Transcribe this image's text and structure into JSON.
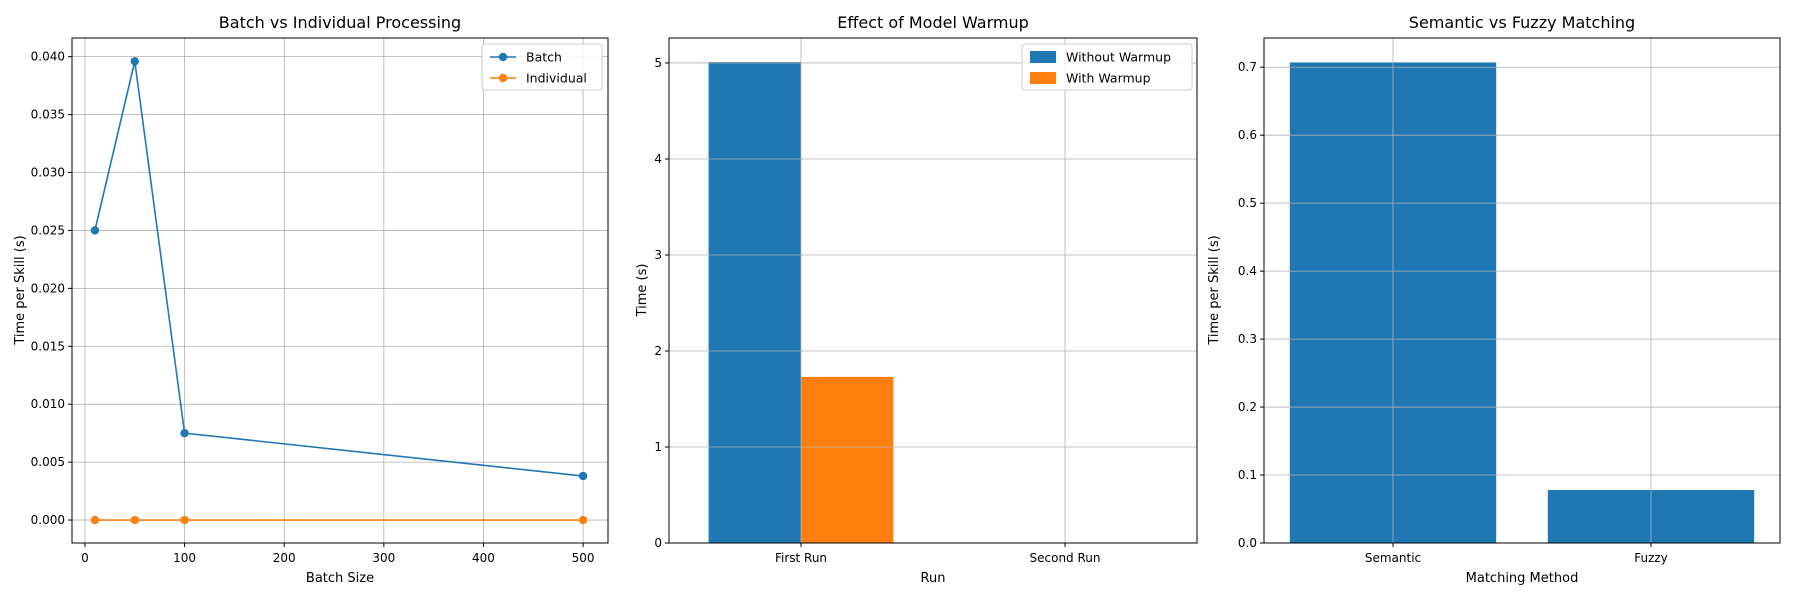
{
  "colors": {
    "blue": "#1f77b4",
    "orange": "#ff7f0e",
    "grid": "#b0b0b0",
    "axis": "#000000"
  },
  "chart_data": [
    {
      "type": "line",
      "title": "Batch vs Individual Processing",
      "xlabel": "Batch Size",
      "ylabel": "Time per Skill (s)",
      "xlim": [
        -13,
        525
      ],
      "ylim": [
        -0.0019815,
        0.04161
      ],
      "xticks": [
        0,
        100,
        200,
        300,
        400,
        500
      ],
      "xtick_labels": [
        "0",
        "100",
        "200",
        "300",
        "400",
        "500"
      ],
      "yticks": [
        0,
        0.005,
        0.01,
        0.015,
        0.02,
        0.025,
        0.03,
        0.035,
        0.04
      ],
      "ytick_labels": [
        "0.000",
        "0.005",
        "0.010",
        "0.015",
        "0.020",
        "0.025",
        "0.030",
        "0.035",
        "0.040"
      ],
      "grid": true,
      "legend": "top-right",
      "x": [
        10,
        50,
        100,
        500
      ],
      "series": [
        {
          "name": "Batch",
          "color": "#1f77b4",
          "values": [
            0.025,
            0.0396,
            0.0075,
            0.0038
          ]
        },
        {
          "name": "Individual",
          "color": "#ff7f0e",
          "values": [
            0.0,
            0.0,
            0.0,
            0.0
          ]
        }
      ]
    },
    {
      "type": "bar",
      "title": "Effect of Model Warmup",
      "xlabel": "Run",
      "ylabel": "Time (s)",
      "categories": [
        "First Run",
        "Second Run"
      ],
      "ylim": [
        0,
        5.26
      ],
      "yticks": [
        0,
        1,
        2,
        3,
        4,
        5
      ],
      "ytick_labels": [
        "0",
        "1",
        "2",
        "3",
        "4",
        "5"
      ],
      "grid": true,
      "legend": "top-right",
      "series": [
        {
          "name": "Without Warmup",
          "color": "#1f77b4",
          "values": [
            5.01,
            0.0
          ]
        },
        {
          "name": "With Warmup",
          "color": "#ff7f0e",
          "values": [
            1.73,
            0.0
          ]
        }
      ]
    },
    {
      "type": "bar",
      "title": "Semantic vs Fuzzy Matching",
      "xlabel": "Matching Method",
      "ylabel": "Time per Skill (s)",
      "categories": [
        "Semantic",
        "Fuzzy"
      ],
      "ylim": [
        0,
        0.743
      ],
      "yticks": [
        0,
        0.1,
        0.2,
        0.3,
        0.4,
        0.5,
        0.6,
        0.7
      ],
      "ytick_labels": [
        "0.0",
        "0.1",
        "0.2",
        "0.3",
        "0.4",
        "0.5",
        "0.6",
        "0.7"
      ],
      "grid": true,
      "series": [
        {
          "values": [
            0.707,
            0.078
          ],
          "color": "#1f77b4"
        }
      ]
    }
  ]
}
